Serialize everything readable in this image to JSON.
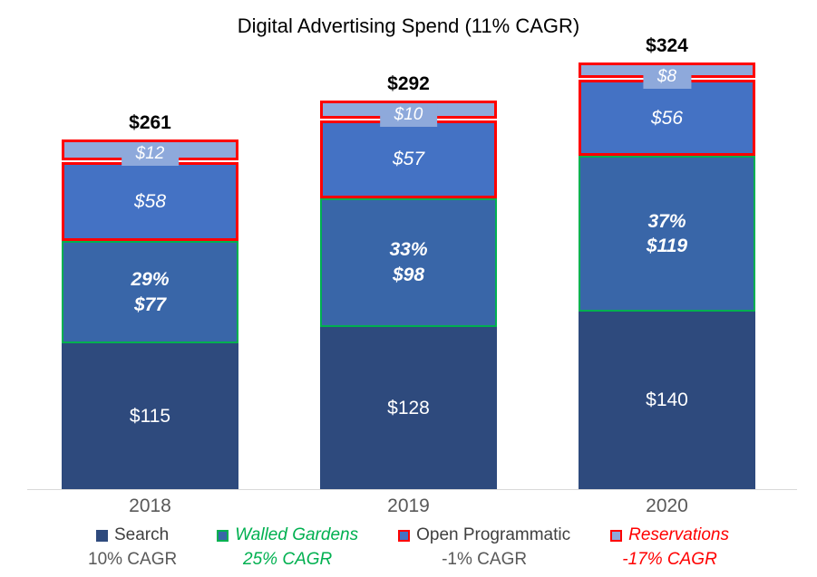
{
  "title": "Digital Advertising Spend (11% CAGR)",
  "chart_data": {
    "type": "bar",
    "stacked": true,
    "title": "Digital Advertising Spend (11% CAGR)",
    "xlabel": "",
    "ylabel": "",
    "ylim": [
      0,
      350
    ],
    "grid": false,
    "legend_position": "bottom",
    "axis_line_color": "#D9D9D9",
    "categories": [
      "2018",
      "2019",
      "2020"
    ],
    "totals": [
      "$261",
      "$292",
      "$324"
    ],
    "series": [
      {
        "name": "Search",
        "values": [
          115,
          128,
          140
        ],
        "labels": [
          [
            "$115"
          ],
          [
            "$128"
          ],
          [
            "$140"
          ]
        ],
        "cagr": "10% CAGR",
        "fill": "#2E4A7D",
        "border": null,
        "border_width": 0,
        "label_class": "",
        "badge_label": false,
        "gap_below": 0
      },
      {
        "name": "Walled Gardens",
        "values": [
          77,
          98,
          119
        ],
        "labels": [
          [
            "29%",
            "$77"
          ],
          [
            "33%",
            "$98"
          ],
          [
            "37%",
            "$119"
          ]
        ],
        "cagr": "25% CAGR",
        "fill": "#3966A8",
        "border": "#00B050",
        "border_width": 2.5,
        "label_class": "bold-italic",
        "badge_label": false,
        "gap_below": 0
      },
      {
        "name": "Open Programmatic",
        "values": [
          58,
          57,
          56
        ],
        "labels": [
          [
            "$58"
          ],
          [
            "$57"
          ],
          [
            "$56"
          ]
        ],
        "cagr": "-1% CAGR",
        "fill": "#4472C4",
        "border": "#FF0000",
        "border_width": 3,
        "label_class": "italic",
        "badge_label": false,
        "gap_below": 0
      },
      {
        "name": "Reservations",
        "values": [
          12,
          10,
          8
        ],
        "labels": [
          [
            "$12"
          ],
          [
            "$10"
          ],
          [
            "$8"
          ]
        ],
        "cagr": "-17% CAGR",
        "fill": "#8EA9DB",
        "border": "#FF0000",
        "border_width": 3,
        "label_class": "italic",
        "badge_label": true,
        "gap_below": 2
      }
    ]
  },
  "legend": {
    "items": [
      {
        "label": "Search",
        "cagr": "10% CAGR",
        "label_color": "#404040",
        "cagr_color": "#595959",
        "swatch_fill": "#2E4A7D",
        "swatch_border": "#2E4A7D",
        "italic": false
      },
      {
        "label": "Walled Gardens",
        "cagr": "25% CAGR",
        "label_color": "#00B050",
        "cagr_color": "#00B050",
        "swatch_fill": "#3966A8",
        "swatch_border": "#00B050",
        "italic": true
      },
      {
        "label": "Open Programmatic",
        "cagr": "-1% CAGR",
        "label_color": "#404040",
        "cagr_color": "#595959",
        "swatch_fill": "#4472C4",
        "swatch_border": "#FF0000",
        "italic": false
      },
      {
        "label": "Reservations",
        "cagr": "-17% CAGR",
        "label_color": "#FF0000",
        "cagr_color": "#FF0000",
        "swatch_fill": "#8EA9DB",
        "swatch_border": "#FF0000",
        "italic": true
      }
    ]
  }
}
